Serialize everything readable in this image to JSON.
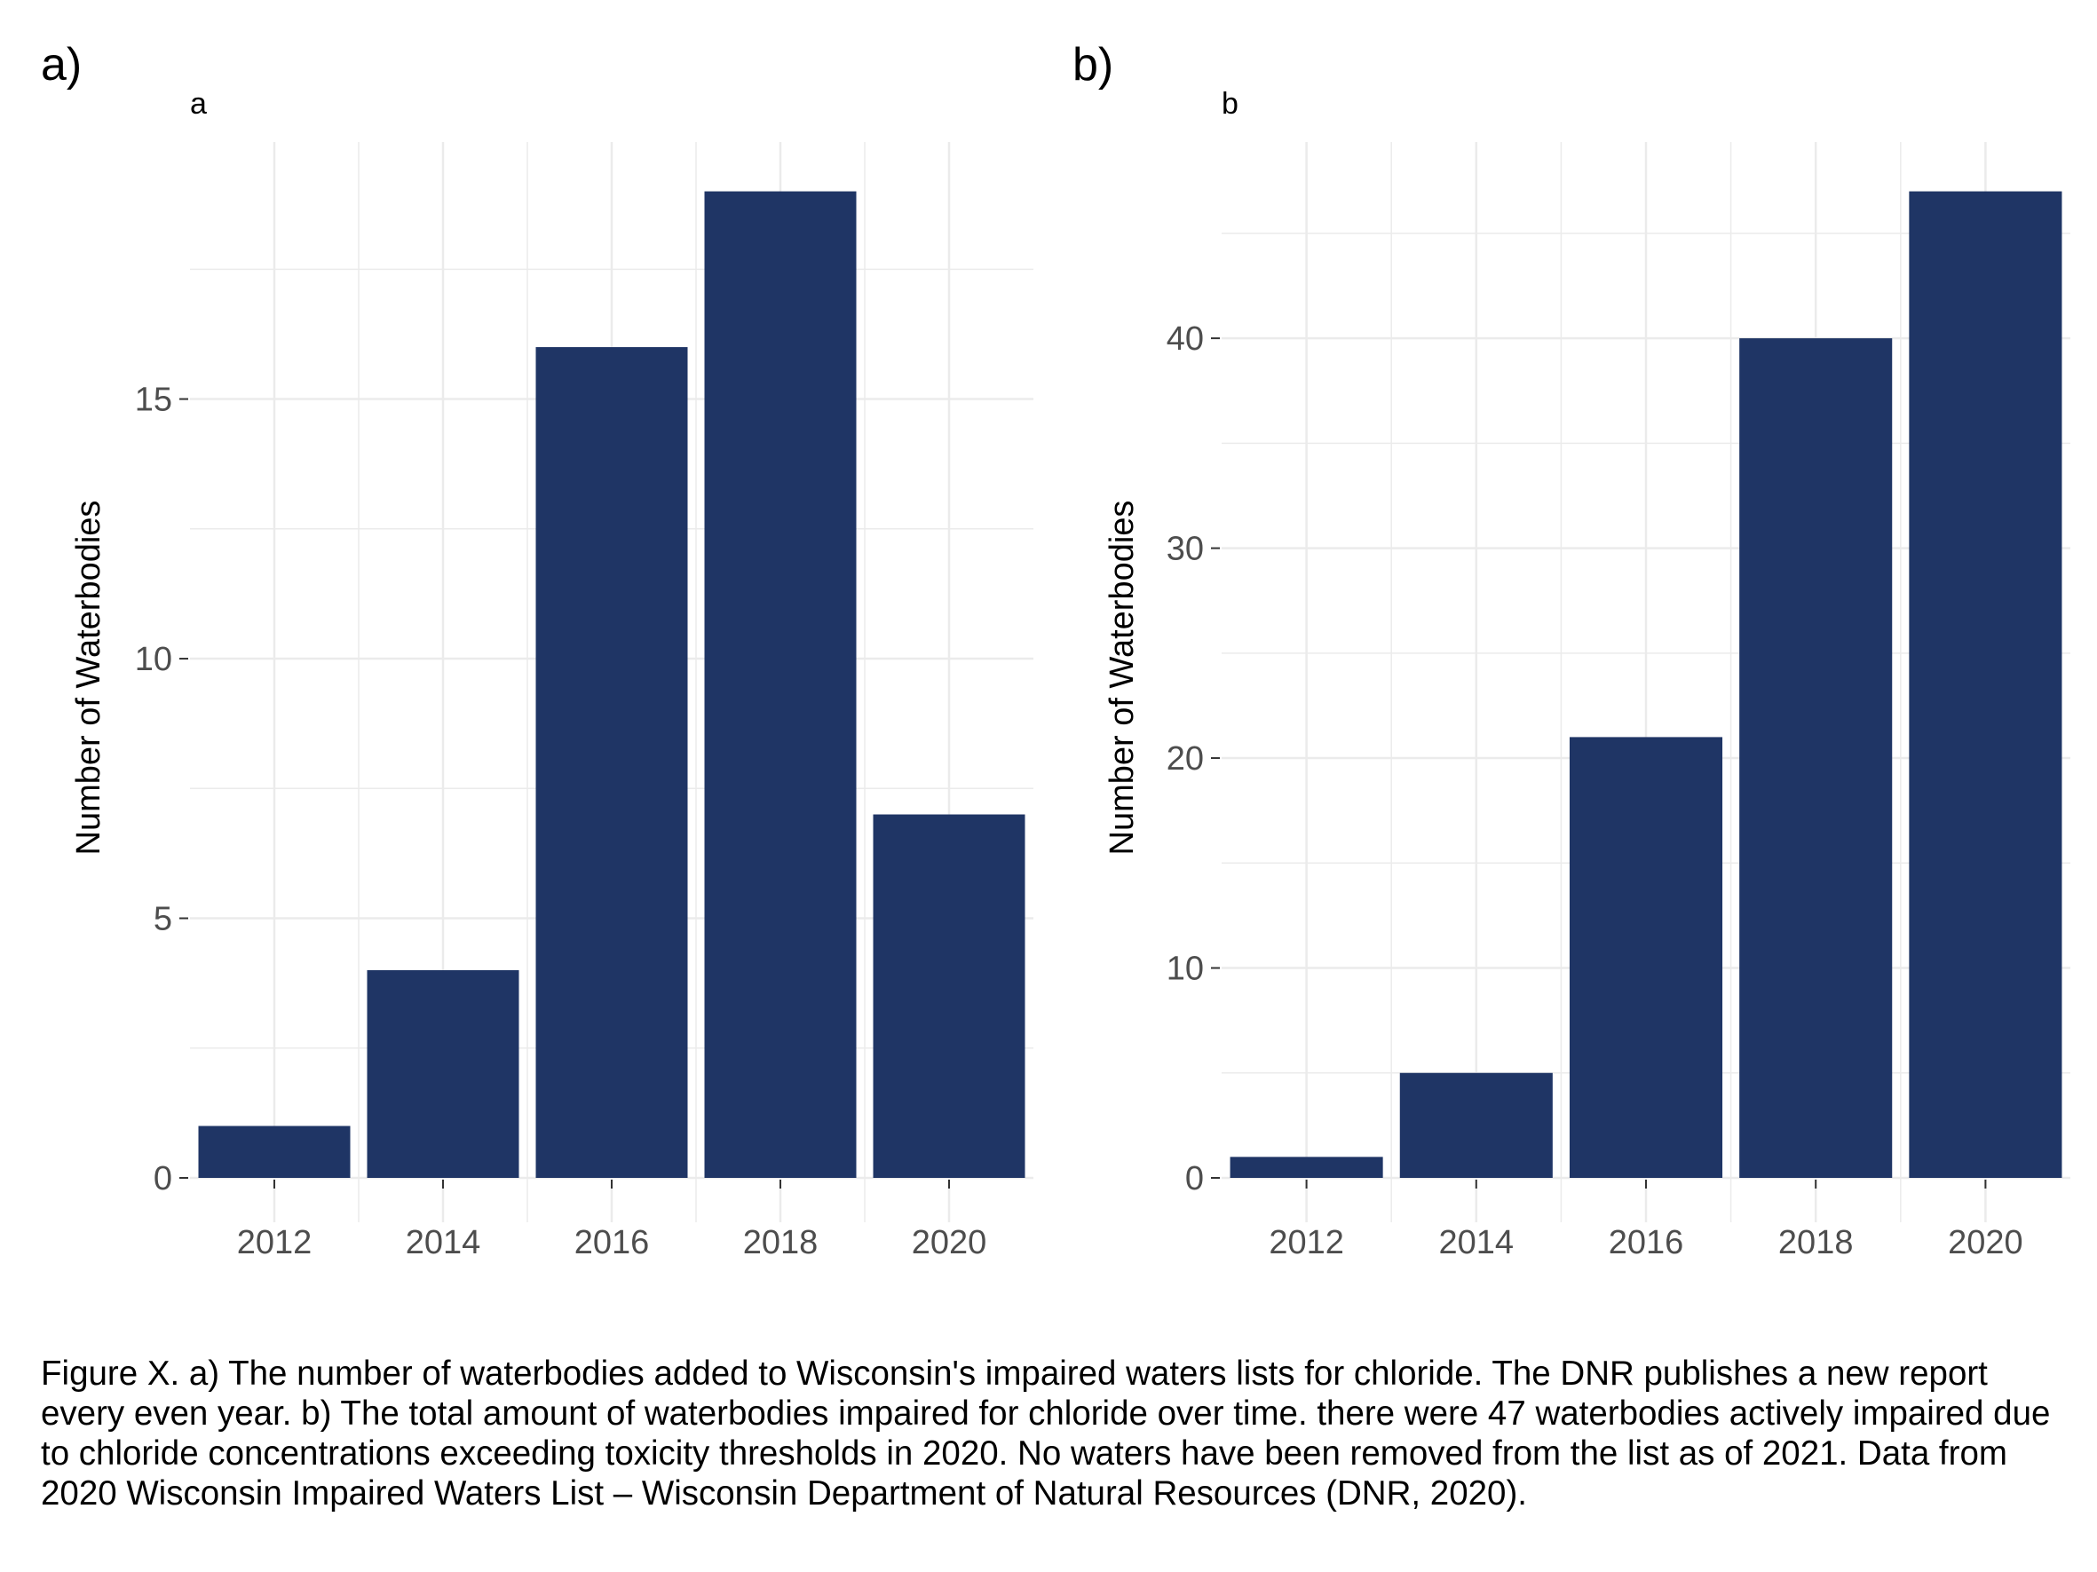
{
  "figure": {
    "caption": "Figure X. a) The number of waterbodies added to Wisconsin's impaired waters lists for chloride. The DNR publishes a new report every even year. b) The total amount of waterbodies impaired for chloride over time. there were 47 waterbodies actively impaired due to chloride concentrations exceeding toxicity thresholds in 2020. No waters have been removed from the list as of 2021. Data from 2020 Wisconsin Impaired Waters List – Wisconsin Department of Natural Resources (DNR, 2020)."
  },
  "colors": {
    "bar": "#1f3565",
    "grid": "#ebebeb",
    "tick_label": "#4d4d4d"
  },
  "chart_data": [
    {
      "type": "bar",
      "panel_label": "a)",
      "title": "a",
      "xlabel": "",
      "ylabel": "Number of Waterbodies",
      "categories": [
        "2012",
        "2014",
        "2016",
        "2018",
        "2020"
      ],
      "values": [
        1,
        4,
        16,
        19,
        7
      ],
      "ylim": [
        0,
        19.95
      ],
      "yticks": [
        0,
        5,
        10,
        15
      ],
      "grid": true
    },
    {
      "type": "bar",
      "panel_label": "b)",
      "title": "b",
      "xlabel": "",
      "ylabel": "Number of Waterbodies",
      "categories": [
        "2012",
        "2014",
        "2016",
        "2018",
        "2020"
      ],
      "values": [
        1,
        5,
        21,
        40,
        47
      ],
      "ylim": [
        0,
        49.35
      ],
      "yticks": [
        0,
        10,
        20,
        30,
        40
      ],
      "grid": true
    }
  ]
}
